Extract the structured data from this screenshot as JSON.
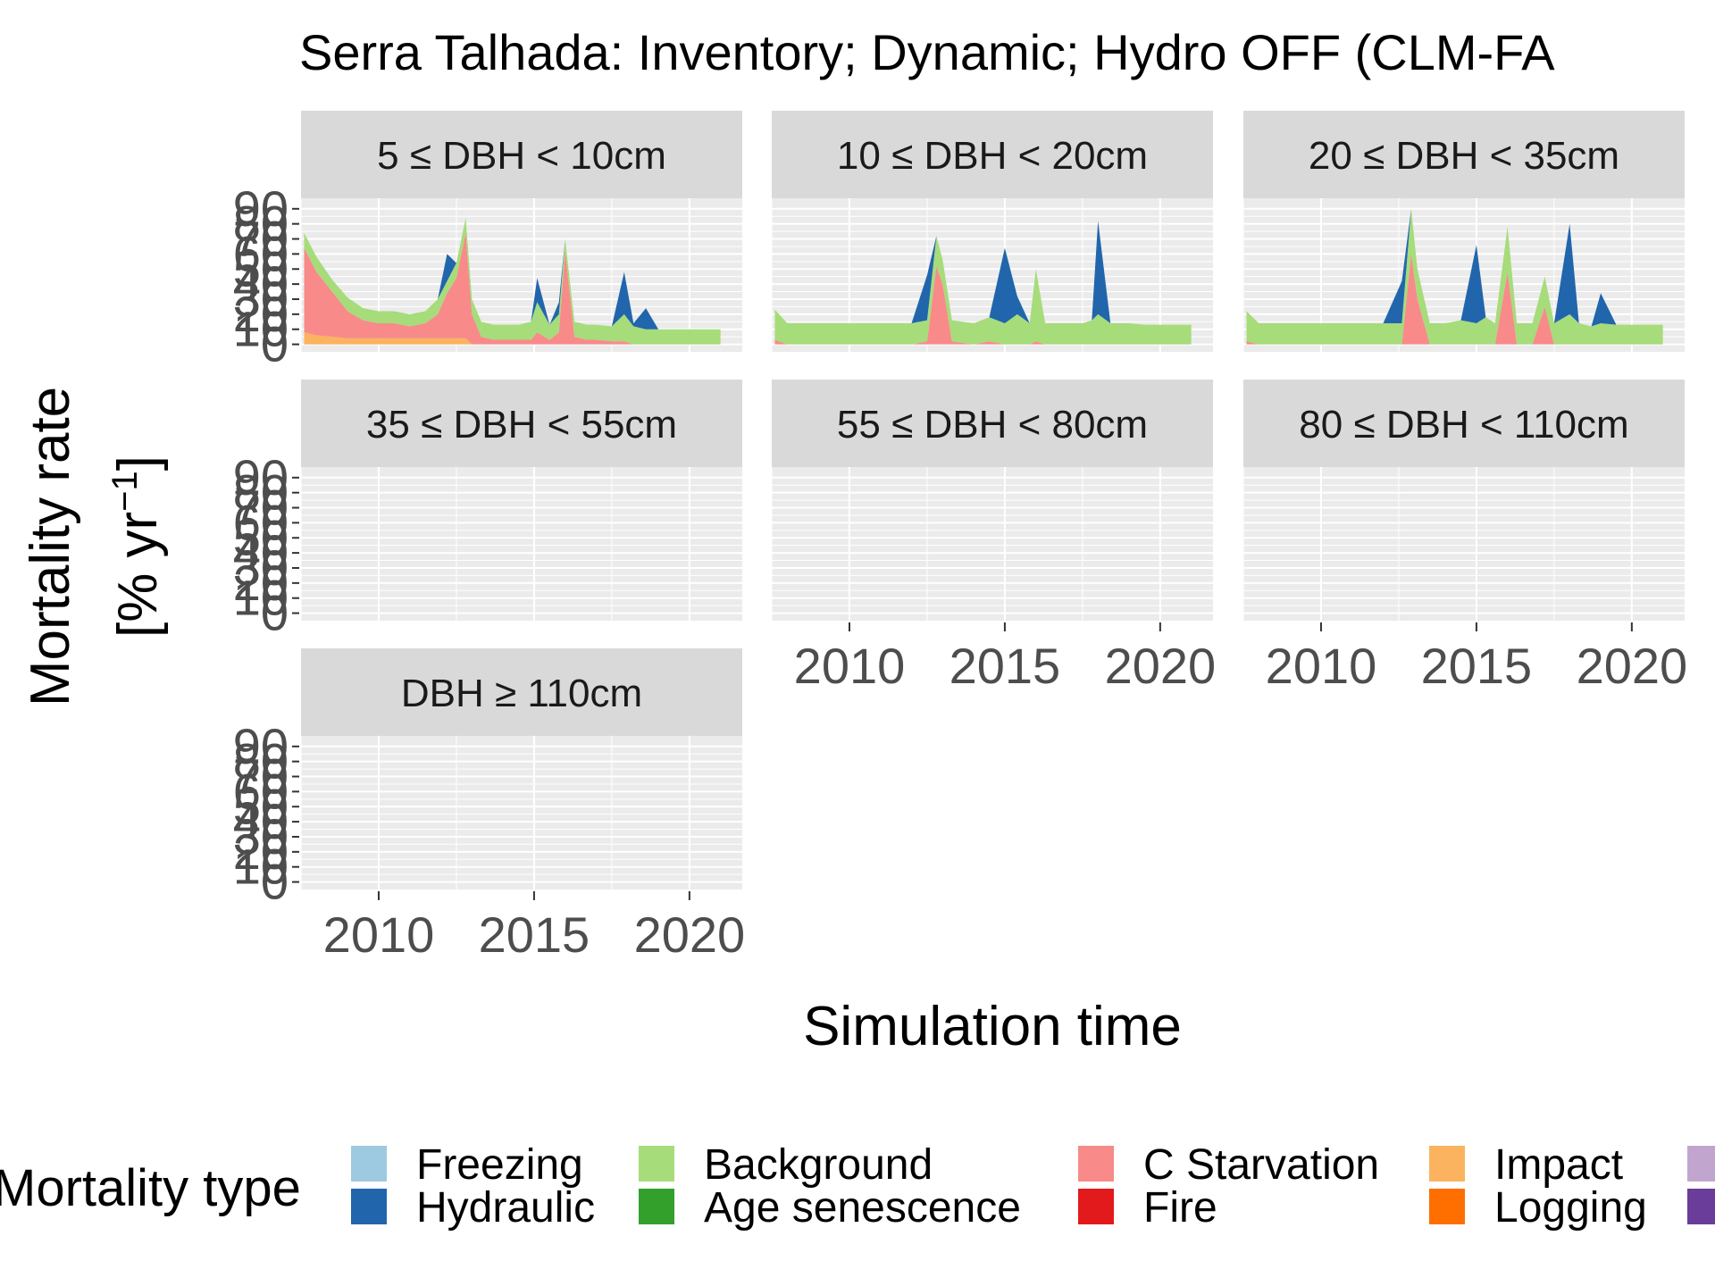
{
  "chart_data": {
    "type": "area",
    "title": "Serra Talhada: Inventory; Dynamic; Hydro OFF (CLM-FA",
    "xlabel": "Simulation time",
    "ylabel_line1": "Mortality rate",
    "ylabel_line2": "[% yr",
    "ylabel_sup": "−1",
    "ylabel_close": "]",
    "x_ticks": [
      "2010",
      "2015",
      "2020"
    ],
    "y_tick_labels": [
      "0",
      "10",
      "20",
      "30",
      "40",
      "50",
      "60",
      "70",
      "80",
      "90"
    ],
    "xlim": [
      2007.5,
      2021.7
    ],
    "ylim": [
      -5,
      97
    ],
    "grid": true,
    "legend_position": "bottom",
    "legend_title": "Mortality type",
    "legend": [
      {
        "name": "Freezing",
        "color": "#9ecae1"
      },
      {
        "name": "Hydraulic",
        "color": "#2166ac"
      },
      {
        "name": "Background",
        "color": "#a6dc7a"
      },
      {
        "name": "Age senescence",
        "color": "#33a02c"
      },
      {
        "name": "C Starvation",
        "color": "#f88a8a"
      },
      {
        "name": "Fire",
        "color": "#e31a1c"
      },
      {
        "name": "Impact",
        "color": "#fbb35f"
      },
      {
        "name": "Logging",
        "color": "#ff6f00"
      },
      {
        "name": "",
        "color": "#c2a5cf"
      },
      {
        "name": "",
        "color": "#6a3d9a"
      }
    ],
    "panels": [
      {
        "label": "5 ≤ DBH < 10cm",
        "x": [
          2007.6,
          2008.0,
          2008.5,
          2009.0,
          2009.5,
          2010.0,
          2010.5,
          2011.0,
          2011.5,
          2011.9,
          2012.2,
          2012.5,
          2012.8,
          2013.0,
          2013.3,
          2013.7,
          2014.0,
          2014.5,
          2014.9,
          2015.1,
          2015.5,
          2015.8,
          2016.0,
          2016.3,
          2016.7,
          2017.0,
          2017.5,
          2017.9,
          2018.2,
          2018.6,
          2019.0,
          2019.5,
          2020.0,
          2020.5,
          2021.0
        ],
        "series": [
          {
            "name": "Impact",
            "values": [
              8,
              6,
              5,
              4,
              4,
              4,
              4,
              4,
              4,
              4,
              4,
              4,
              4,
              0,
              0,
              0,
              0,
              0,
              0,
              0,
              0,
              0,
              0,
              0,
              0,
              0,
              0,
              0,
              0,
              0,
              0,
              0,
              0,
              0,
              0
            ]
          },
          {
            "name": "C Starvation",
            "values": [
              56,
              42,
              30,
              18,
              12,
              10,
              10,
              8,
              10,
              16,
              30,
              40,
              70,
              20,
              5,
              3,
              3,
              3,
              3,
              8,
              3,
              8,
              62,
              5,
              3,
              3,
              2,
              2,
              0,
              0,
              0,
              0,
              0,
              0,
              0
            ]
          },
          {
            "name": "Background",
            "values": [
              10,
              10,
              8,
              9,
              8,
              8,
              8,
              8,
              8,
              10,
              8,
              10,
              10,
              10,
              10,
              10,
              10,
              10,
              12,
              20,
              10,
              12,
              8,
              10,
              10,
              10,
              10,
              18,
              12,
              10,
              10,
              10,
              10,
              10,
              10
            ]
          },
          {
            "name": "Hydraulic",
            "values": [
              0,
              0,
              0,
              0,
              0,
              0,
              0,
              0,
              0,
              0,
              18,
              0,
              0,
              0,
              0,
              0,
              0,
              0,
              0,
              16,
              0,
              8,
              0,
              0,
              0,
              0,
              0,
              28,
              2,
              14,
              0,
              0,
              0,
              0,
              0
            ]
          }
        ]
      },
      {
        "label": "10 ≤ DBH < 20cm",
        "x": [
          2007.6,
          2008.0,
          2009.0,
          2010.0,
          2011.0,
          2012.0,
          2012.5,
          2012.8,
          2013.0,
          2013.3,
          2014.0,
          2014.5,
          2015.0,
          2015.4,
          2015.8,
          2016.0,
          2016.3,
          2016.8,
          2017.5,
          2017.8,
          2018.0,
          2018.4,
          2019.0,
          2019.5,
          2020.0,
          2020.5,
          2021.0
        ],
        "series": [
          {
            "name": "C Starvation",
            "values": [
              3,
              0,
              0,
              0,
              0,
              0,
              2,
              52,
              40,
              2,
              0,
              2,
              0,
              0,
              0,
              2,
              0,
              0,
              0,
              0,
              0,
              0,
              0,
              0,
              0,
              0,
              0
            ]
          },
          {
            "name": "Background",
            "values": [
              20,
              14,
              14,
              14,
              14,
              14,
              14,
              20,
              16,
              14,
              14,
              16,
              14,
              20,
              14,
              48,
              14,
              14,
              14,
              16,
              20,
              14,
              14,
              13,
              13,
              13,
              13
            ]
          },
          {
            "name": "Hydraulic",
            "values": [
              0,
              0,
              0,
              0,
              0,
              0,
              30,
              0,
              0,
              0,
              0,
              0,
              50,
              12,
              0,
              0,
              0,
              0,
              0,
              0,
              62,
              0,
              0,
              0,
              0,
              0,
              0
            ]
          }
        ]
      },
      {
        "label": "20 ≤ DBH < 35cm",
        "x": [
          2007.6,
          2008.0,
          2009.0,
          2010.0,
          2011.0,
          2012.0,
          2012.6,
          2012.9,
          2013.1,
          2013.5,
          2014.0,
          2014.5,
          2015.0,
          2015.3,
          2015.6,
          2016.0,
          2016.3,
          2016.8,
          2017.2,
          2017.5,
          2018.0,
          2018.3,
          2018.7,
          2019.0,
          2019.5,
          2020.0,
          2021.0
        ],
        "series": [
          {
            "name": "C Starvation",
            "values": [
              2,
              0,
              0,
              0,
              0,
              0,
              0,
              60,
              30,
              0,
              0,
              0,
              0,
              0,
              0,
              48,
              0,
              0,
              25,
              0,
              0,
              0,
              0,
              0,
              0,
              0,
              0
            ]
          },
          {
            "name": "Background",
            "values": [
              20,
              14,
              14,
              14,
              14,
              14,
              14,
              30,
              20,
              14,
              14,
              16,
              14,
              18,
              14,
              30,
              14,
              14,
              20,
              14,
              20,
              14,
              12,
              14,
              13,
              13,
              13
            ]
          },
          {
            "name": "Hydraulic",
            "values": [
              0,
              0,
              0,
              0,
              0,
              0,
              28,
              0,
              0,
              0,
              0,
              0,
              52,
              0,
              0,
              0,
              0,
              0,
              0,
              0,
              60,
              0,
              0,
              20,
              0,
              0,
              0
            ]
          }
        ]
      },
      {
        "label": "35 ≤ DBH < 55cm",
        "x": [],
        "series": []
      },
      {
        "label": "55 ≤ DBH < 80cm",
        "x": [],
        "series": []
      },
      {
        "label": "80 ≤ DBH < 110cm",
        "x": [],
        "series": []
      },
      {
        "label": "DBH ≥ 110cm",
        "x": [],
        "series": []
      }
    ]
  }
}
